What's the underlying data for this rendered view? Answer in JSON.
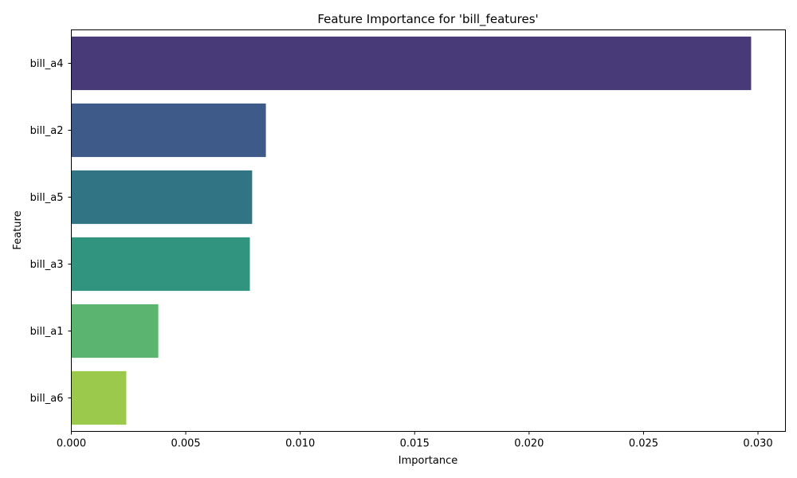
{
  "chart_data": {
    "type": "bar",
    "orientation": "horizontal",
    "title": "Feature Importance for 'bill_features'",
    "xlabel": "Importance",
    "ylabel": "Feature",
    "xlim": [
      0,
      0.0312
    ],
    "xticks": [
      0,
      0.005,
      0.01,
      0.015,
      0.02,
      0.025,
      0.03
    ],
    "xtick_labels": [
      "0.000",
      "0.005",
      "0.010",
      "0.015",
      "0.020",
      "0.025",
      "0.030"
    ],
    "categories": [
      "bill_a4",
      "bill_a2",
      "bill_a5",
      "bill_a3",
      "bill_a1",
      "bill_a6"
    ],
    "values": [
      0.0297,
      0.0085,
      0.0079,
      0.0078,
      0.0038,
      0.0024
    ],
    "colors": [
      "#483a78",
      "#3e5a88",
      "#317584",
      "#31947f",
      "#5bb571",
      "#9bc94b"
    ],
    "grid": false,
    "palette": "viridis"
  }
}
